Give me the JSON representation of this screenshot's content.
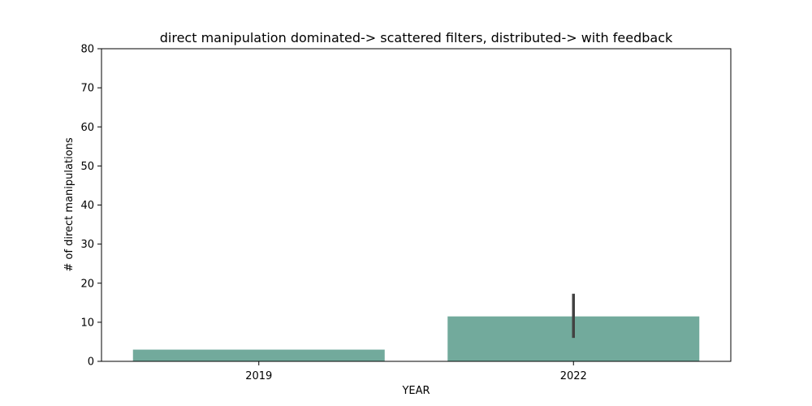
{
  "chart_data": {
    "type": "bar",
    "title": "direct manipulation dominated-> scattered filters, distributed-> with feedback",
    "xlabel": "YEAR",
    "ylabel": "# of direct manipulations",
    "categories": [
      "2019",
      "2022"
    ],
    "values": [
      3,
      11.5
    ],
    "error_bars": [
      null,
      {
        "low": 6,
        "high": 17.3
      }
    ],
    "ylim": [
      0,
      80
    ],
    "yticks": [
      0,
      10,
      20,
      30,
      40,
      50,
      60,
      70,
      80
    ],
    "grid": false,
    "legend": "none",
    "colors": {
      "bar": "#72aa9c",
      "error_bar": "#424242",
      "axis": "#000000"
    }
  }
}
